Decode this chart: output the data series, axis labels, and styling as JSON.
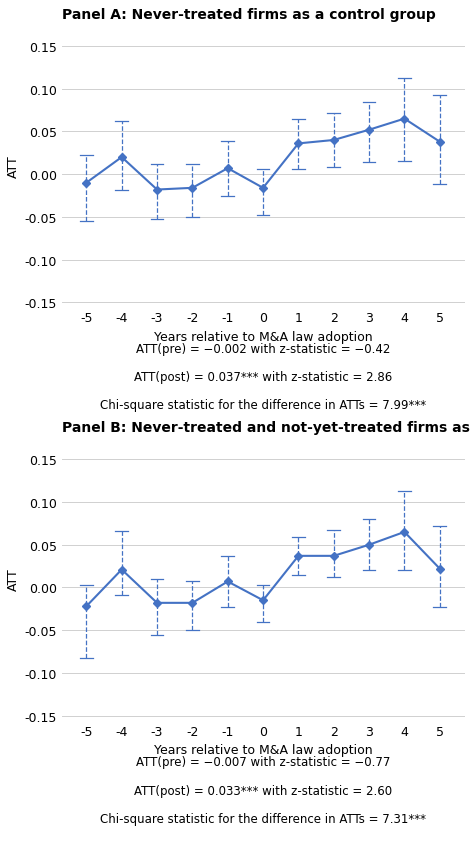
{
  "panel_a": {
    "title": "Panel A: Never-treated firms as a control group",
    "x": [
      -5,
      -4,
      -3,
      -2,
      -1,
      0,
      1,
      2,
      3,
      4,
      5
    ],
    "y": [
      -0.01,
      0.02,
      -0.018,
      -0.016,
      0.007,
      -0.016,
      0.036,
      0.04,
      0.052,
      0.065,
      0.038
    ],
    "yerr_lower": [
      0.045,
      0.038,
      0.035,
      0.034,
      0.033,
      0.032,
      0.03,
      0.032,
      0.038,
      0.05,
      0.05
    ],
    "yerr_upper": [
      0.032,
      0.042,
      0.03,
      0.028,
      0.032,
      0.022,
      0.028,
      0.032,
      0.033,
      0.048,
      0.055
    ],
    "ann1": "ATT(pre) = −0.002 with z-statistic = −0.42",
    "ann2_pre": "ATT(post) = 0.037",
    "ann2_sup": "***",
    "ann2_post": " with z-statistic = 2.86",
    "ann3_pre": "Chi-square statistic for the difference in ATTs = 7.99",
    "ann3_sup": "***"
  },
  "panel_b": {
    "title": "Panel B: Never-treated and not-yet-treated firms as a control group",
    "x": [
      -5,
      -4,
      -3,
      -2,
      -1,
      0,
      1,
      2,
      3,
      4,
      5
    ],
    "y": [
      -0.022,
      0.021,
      -0.018,
      -0.018,
      0.007,
      -0.015,
      0.037,
      0.037,
      0.05,
      0.065,
      0.022
    ],
    "yerr_lower": [
      0.06,
      0.03,
      0.038,
      0.032,
      0.03,
      0.025,
      0.022,
      0.025,
      0.03,
      0.045,
      0.045
    ],
    "yerr_upper": [
      0.025,
      0.045,
      0.028,
      0.025,
      0.03,
      0.018,
      0.022,
      0.03,
      0.03,
      0.048,
      0.05
    ],
    "ann1": "ATT(pre) = −0.007 with z-statistic = −0.77",
    "ann2_pre": "ATT(post) = 0.033",
    "ann2_sup": "***",
    "ann2_post": " with z-statistic = 2.60",
    "ann3_pre": "Chi-square statistic for the difference in ATTs = 7.31",
    "ann3_sup": "***"
  },
  "line_color": "#4472C4",
  "marker_style": "D",
  "marker_size": 4,
  "ylim": [
    -0.155,
    0.175
  ],
  "yticks": [
    -0.15,
    -0.1,
    -0.05,
    0.0,
    0.05,
    0.1,
    0.15
  ],
  "xlabel": "Years relative to M&A law adoption",
  "ylabel": "ATT",
  "line_width": 1.5,
  "ann_fontsize": 8.5,
  "title_fontsize": 10,
  "tick_fontsize": 9,
  "xlabel_fontsize": 9,
  "ylabel_fontsize": 9
}
